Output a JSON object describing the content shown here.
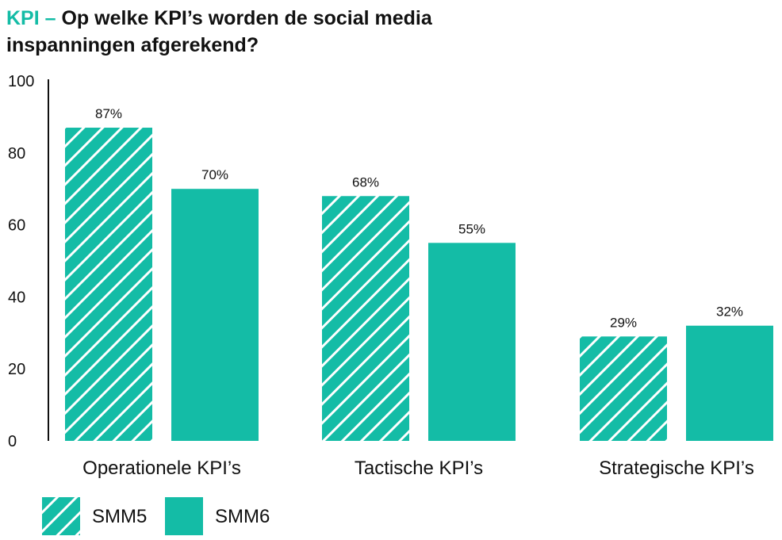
{
  "title": {
    "prefix": "KPI –",
    "line1": "Op welke KPI’s worden de social media",
    "line2": "inspanningen afgerekend?"
  },
  "colors": {
    "accent": "#14bca6",
    "bar": "#14bca6",
    "hatch": "#ffffff"
  },
  "chart_data": {
    "type": "bar",
    "title": "KPI – Op welke KPI’s worden de social media inspanningen afgerekend?",
    "categories": [
      "Operationele KPI’s",
      "Tactische KPI’s",
      "Strategische KPI’s"
    ],
    "series": [
      {
        "name": "SMM5",
        "values": [
          87,
          68,
          29
        ],
        "labels": [
          "87%",
          "68%",
          "29%"
        ],
        "style": "hatched"
      },
      {
        "name": "SMM6",
        "values": [
          70,
          55,
          32
        ],
        "labels": [
          "70%",
          "55%",
          "32%"
        ],
        "style": "solid"
      }
    ],
    "ylim": [
      0,
      100
    ],
    "yticks": [
      0,
      20,
      40,
      60,
      80,
      100
    ],
    "xlabel": "",
    "ylabel": "",
    "grid": false,
    "legend": "bottom-left"
  }
}
